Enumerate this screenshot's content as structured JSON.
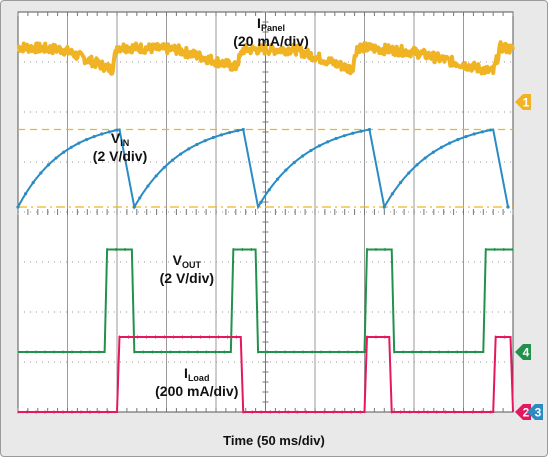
{
  "chart_data": {
    "type": "line",
    "title": "",
    "xlabel": "Time (50 ms/div)",
    "x_divisions": 10,
    "y_divisions": 8,
    "grid": true,
    "channel_markers": [
      {
        "channel": "1",
        "color": "#f0b323",
        "level_div": 6.2
      },
      {
        "channel": "4",
        "color": "#22924a",
        "level_div": 1.2
      },
      {
        "channel": "2",
        "color": "#e4185f",
        "level_div": 0.0
      },
      {
        "channel": "3",
        "color": "#2b8cc4",
        "level_div": 0.0
      }
    ],
    "series": [
      {
        "channel": "1",
        "label_main": "I",
        "label_sub": "Panel",
        "label_scale": "(20 mA/div)",
        "color": "#f0b323",
        "x_div": [
          0.0,
          0.9,
          1.9,
          2.0,
          3.2,
          4.4,
          4.55,
          5.6,
          6.75,
          6.85,
          8.0,
          9.6,
          9.75,
          10.0
        ],
        "y_div": [
          7.3,
          7.25,
          6.85,
          7.3,
          7.25,
          6.9,
          7.25,
          7.25,
          6.85,
          7.3,
          7.2,
          6.8,
          7.3,
          7.25
        ],
        "noise_div": 0.1
      },
      {
        "channel": "2",
        "label_main": "V",
        "label_sub": "IN",
        "label_scale": "(2 V/div)",
        "color": "#2b8cc4",
        "x_div": [
          0.0,
          2.05,
          2.35,
          4.55,
          4.85,
          7.1,
          7.4,
          9.6,
          9.9
        ],
        "y_div": [
          4.1,
          5.65,
          4.1,
          5.65,
          4.1,
          5.65,
          4.1,
          5.65,
          4.1
        ]
      },
      {
        "channel": "4",
        "label_main": "V",
        "label_sub": "OUT",
        "label_scale": "(2 V/div)",
        "color": "#22924a",
        "x_div": [
          0.0,
          1.75,
          1.8,
          2.3,
          2.35,
          4.3,
          4.35,
          4.8,
          4.85,
          7.0,
          7.05,
          7.55,
          7.6,
          9.4,
          9.45,
          10.0
        ],
        "y_div": [
          1.2,
          1.2,
          3.25,
          3.25,
          1.2,
          1.2,
          3.25,
          3.25,
          1.2,
          1.2,
          3.25,
          3.25,
          1.2,
          1.2,
          3.25,
          3.25
        ]
      },
      {
        "channel": "3",
        "label_main": "I",
        "label_sub": "Load",
        "label_scale": "(200 mA/div)",
        "color": "#e4185f",
        "x_div": [
          0.0,
          2.0,
          2.05,
          4.5,
          4.55,
          7.0,
          7.05,
          7.5,
          7.55,
          9.6,
          9.65,
          9.95,
          10.0
        ],
        "y_div": [
          0.0,
          0.0,
          1.5,
          1.5,
          0.0,
          0.0,
          1.5,
          1.5,
          0.0,
          0.0,
          1.5,
          1.5,
          0.0
        ]
      }
    ]
  }
}
